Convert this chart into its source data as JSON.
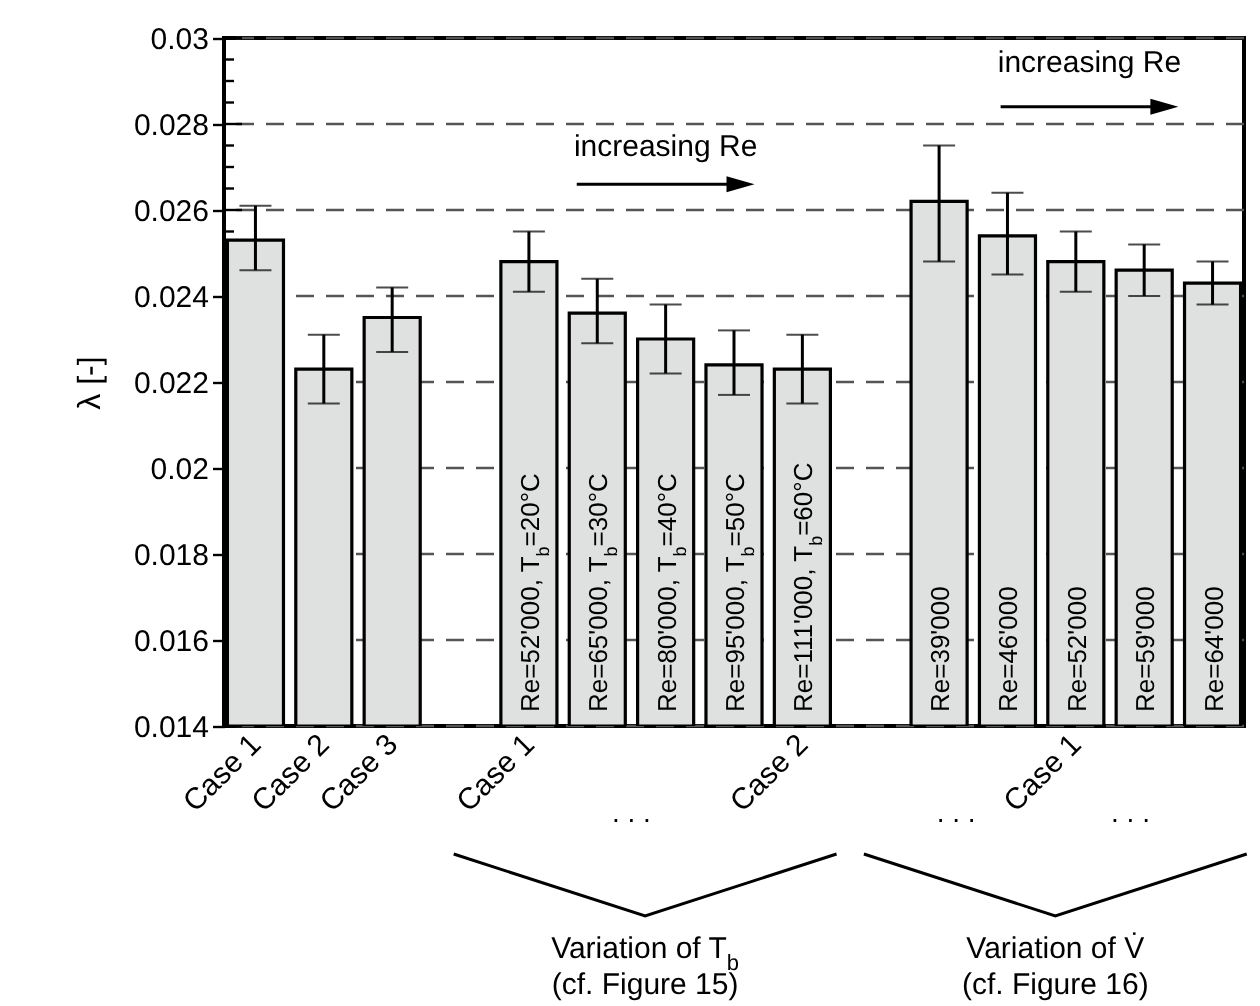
{
  "chart_data": {
    "type": "bar",
    "ylabel": "λ [-]",
    "categories": [
      "Case 1",
      "Case 2",
      "Case 3",
      null,
      "Case 1",
      null,
      null,
      null,
      "Case 2",
      null,
      null,
      null,
      "Case 1",
      null,
      null
    ],
    "values": [
      0.0253,
      0.0223,
      0.0235,
      null,
      0.0248,
      0.0236,
      0.023,
      0.0224,
      0.0223,
      null,
      0.0262,
      0.0254,
      0.0248,
      0.0246,
      0.0243
    ],
    "errors": [
      [
        0.0246,
        0.0261
      ],
      [
        0.0215,
        0.0231
      ],
      [
        0.0227,
        0.0242
      ],
      null,
      [
        0.0241,
        0.0255
      ],
      [
        0.0229,
        0.0244
      ],
      [
        0.0222,
        0.0238
      ],
      [
        0.0217,
        0.0232
      ],
      [
        0.0215,
        0.0231
      ],
      null,
      [
        0.0248,
        0.0275
      ],
      [
        0.0245,
        0.0264
      ],
      [
        0.0241,
        0.0255
      ],
      [
        0.024,
        0.0252
      ],
      [
        0.0238,
        0.0248
      ]
    ],
    "color": "#dfe0e0",
    "ylim": [
      0.014,
      0.03
    ],
    "yticks": [
      0.014,
      {
        "value": 0.0145,
        "label": null
      },
      {
        "value": 0.015,
        "label": null
      },
      {
        "value": 0.0155,
        "label": null
      },
      0.016,
      {
        "value": 0.0165,
        "label": null
      },
      {
        "value": 0.017,
        "label": null
      },
      {
        "value": 0.0175,
        "label": null
      },
      0.018,
      {
        "value": 0.0185,
        "label": null
      },
      {
        "value": 0.019,
        "label": null
      },
      {
        "value": 0.0195,
        "label": null
      },
      0.02,
      {
        "value": 0.0205,
        "label": null
      },
      {
        "value": 0.021,
        "label": null
      },
      {
        "value": 0.0215,
        "label": null
      },
      0.022,
      {
        "value": 0.0225,
        "label": null
      },
      {
        "value": 0.023,
        "label": null
      },
      {
        "value": 0.0235,
        "label": null
      },
      0.024,
      {
        "value": 0.0245,
        "label": null
      },
      {
        "value": 0.025,
        "label": null
      },
      {
        "value": 0.0255,
        "label": null
      },
      0.026,
      {
        "value": 0.0265,
        "label": null
      },
      {
        "value": 0.027,
        "label": null
      },
      {
        "value": 0.0275,
        "label": null
      },
      0.028,
      {
        "value": 0.0285,
        "label": null
      },
      {
        "value": 0.029,
        "label": null
      },
      {
        "value": 0.0295,
        "label": null
      },
      0.03
    ],
    "grid": "y",
    "annotations": [
      "increasing Re",
      "increasing Re",
      "Re=52'000, T$_{b}$=20°C",
      "Re=65'000, T$_{b}$=30°C",
      "Re=80'000, T$_{b}$=40°C",
      "Re=95'000, T$_{b}$=50°C",
      "Re=111'000, T$_{b}$=60°C",
      "Re=39'000",
      "Re=46'000",
      "Re=52'000",
      "Re=59'000",
      "Re=64'000",
      ". . .",
      ". . .",
      ". . .",
      "Variation of T$_{b}$\n(cf. Figure 15)",
      "Variation of V̇\n(cf. Figure 16)"
    ]
  }
}
